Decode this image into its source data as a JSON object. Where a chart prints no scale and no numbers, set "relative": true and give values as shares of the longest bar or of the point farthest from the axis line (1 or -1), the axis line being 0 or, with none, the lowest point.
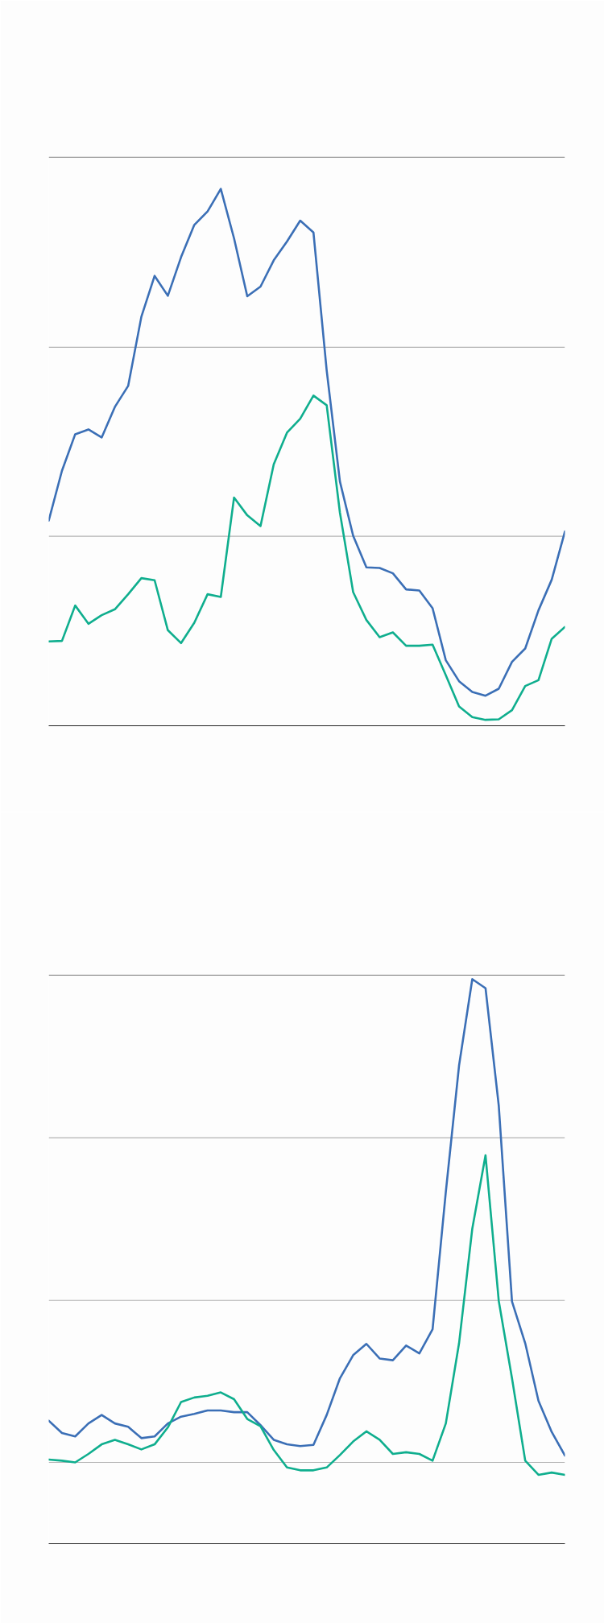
{
  "chart_data": [
    {
      "type": "line",
      "relative": true,
      "line_style": "solid",
      "categories": [
        null,
        null,
        null,
        null,
        null,
        null,
        null,
        null,
        null,
        null,
        null,
        null,
        null,
        null,
        null,
        null,
        null,
        null,
        null,
        null,
        null,
        null,
        null,
        null,
        null,
        null,
        null,
        null,
        null,
        null,
        null,
        null,
        null,
        null,
        null,
        null,
        null,
        null,
        null,
        null
      ],
      "series": [
        {
          "color": "#3b6fb6",
          "values": [
            0.382,
            0.475,
            0.543,
            0.552,
            0.537,
            0.594,
            0.633,
            0.762,
            0.838,
            0.801,
            0.873,
            0.933,
            0.958,
            1.0,
            0.908,
            0.8,
            0.818,
            0.867,
            0.902,
            0.941,
            0.919,
            0.662,
            0.455,
            0.354,
            0.295,
            0.294,
            0.284,
            0.254,
            0.252,
            0.219,
            0.122,
            0.083,
            0.063,
            0.056,
            0.069,
            0.119,
            0.144,
            0.215,
            0.272,
            0.362
          ]
        },
        {
          "color": "#0fae8e",
          "values": [
            0.157,
            0.158,
            0.224,
            0.19,
            0.206,
            0.217,
            0.245,
            0.275,
            0.271,
            0.178,
            0.154,
            0.192,
            0.245,
            0.24,
            0.425,
            0.392,
            0.372,
            0.487,
            0.546,
            0.572,
            0.615,
            0.597,
            0.397,
            0.249,
            0.197,
            0.165,
            0.174,
            0.149,
            0.149,
            0.151,
            0.094,
            0.036,
            0.016,
            0.011,
            0.012,
            0.029,
            0.074,
            0.085,
            0.162,
            0.184
          ]
        }
      ],
      "ref_lines": [
        {
          "axis": "y",
          "value": 0.353,
          "color": "#b3b3b3"
        },
        {
          "axis": "y",
          "value": 0.705,
          "color": "#b3b3b3"
        },
        {
          "axis": "y",
          "value": 1.059,
          "color": "#999999"
        }
      ]
    },
    {
      "type": "line",
      "relative": true,
      "line_style": "solid",
      "categories": [
        null,
        null,
        null,
        null,
        null,
        null,
        null,
        null,
        null,
        null,
        null,
        null,
        null,
        null,
        null,
        null,
        null,
        null,
        null,
        null,
        null,
        null,
        null,
        null,
        null,
        null,
        null,
        null,
        null,
        null,
        null,
        null,
        null,
        null,
        null,
        null,
        null,
        null,
        null,
        null
      ],
      "series": [
        {
          "color": "#3b6fb6",
          "values": [
            0.218,
            0.196,
            0.19,
            0.213,
            0.228,
            0.213,
            0.207,
            0.187,
            0.19,
            0.213,
            0.225,
            0.23,
            0.236,
            0.236,
            0.233,
            0.233,
            0.21,
            0.184,
            0.176,
            0.173,
            0.175,
            0.228,
            0.293,
            0.334,
            0.354,
            0.328,
            0.325,
            0.351,
            0.337,
            0.38,
            0.623,
            0.847,
            1.0,
            0.984,
            0.776,
            0.429,
            0.355,
            0.253,
            0.198,
            0.156
          ]
        },
        {
          "color": "#0fae8e",
          "values": [
            0.149,
            0.147,
            0.144,
            0.159,
            0.176,
            0.184,
            0.176,
            0.167,
            0.176,
            0.206,
            0.251,
            0.259,
            0.262,
            0.268,
            0.256,
            0.221,
            0.208,
            0.166,
            0.135,
            0.13,
            0.13,
            0.135,
            0.157,
            0.181,
            0.199,
            0.184,
            0.159,
            0.162,
            0.159,
            0.147,
            0.213,
            0.355,
            0.558,
            0.688,
            0.43,
            0.293,
            0.147,
            0.122,
            0.126,
            0.122
          ]
        }
      ],
      "ref_lines": [
        {
          "axis": "y",
          "value": 0.144,
          "color": "#b3b3b3"
        },
        {
          "axis": "y",
          "value": 0.431,
          "color": "#b3b3b3"
        },
        {
          "axis": "y",
          "value": 0.719,
          "color": "#b3b3b3"
        },
        {
          "axis": "y",
          "value": 1.007,
          "color": "#999999"
        }
      ]
    }
  ]
}
